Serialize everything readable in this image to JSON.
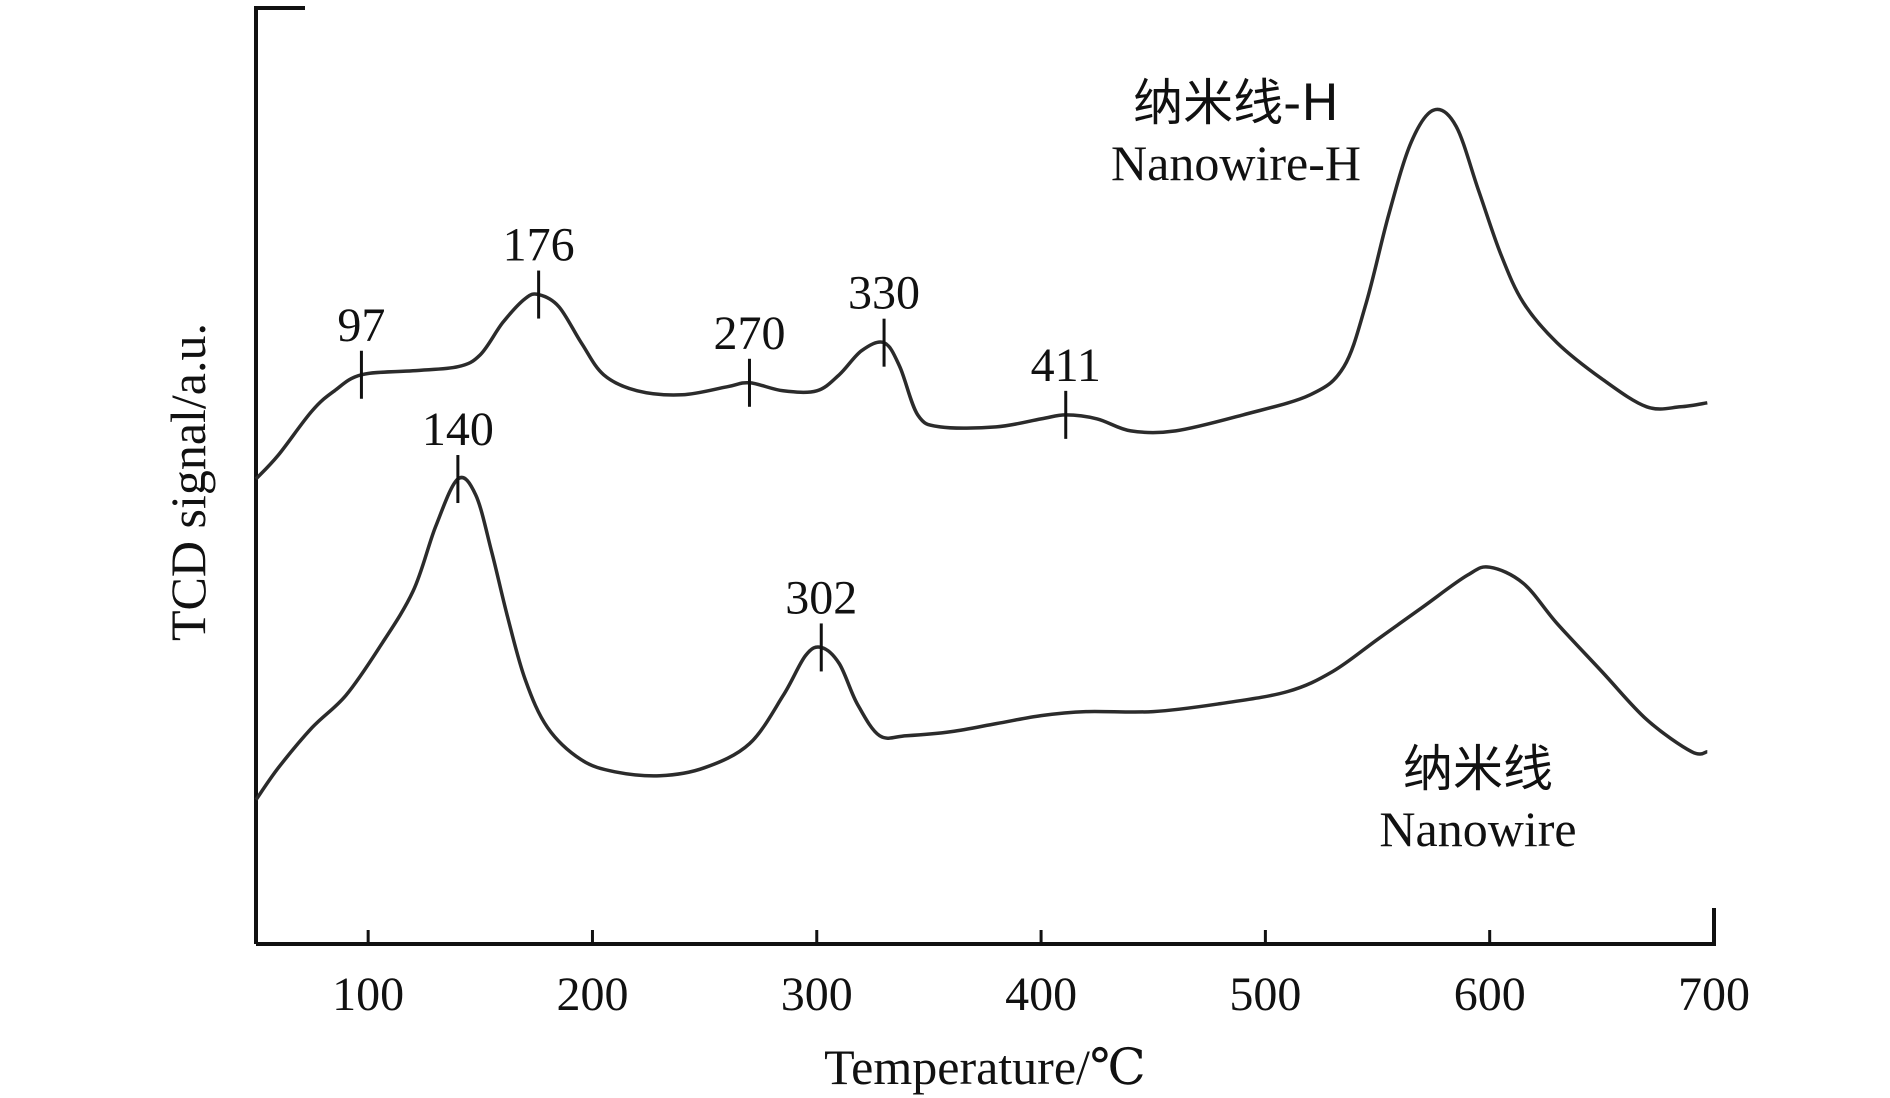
{
  "chart_data": {
    "type": "line",
    "xlabel": "Temperature/℃",
    "ylabel": "TCD signal/a.u.",
    "xlim": [
      50,
      700
    ],
    "x_ticks": [
      100,
      200,
      300,
      400,
      500,
      600,
      700
    ],
    "ylim": [
      0,
      100
    ],
    "y_tick_labels": false,
    "grid": false,
    "legend": "none (series labelled inline)",
    "series": [
      {
        "name": "Nanowire-H",
        "name_cn": "纳米线-H",
        "color": "#2b2b2b",
        "points": [
          [
            50,
            49
          ],
          [
            60,
            52
          ],
          [
            75,
            57.5
          ],
          [
            85,
            60
          ],
          [
            97,
            62
          ],
          [
            120,
            62.5
          ],
          [
            140,
            63
          ],
          [
            150,
            64.5
          ],
          [
            160,
            68.5
          ],
          [
            170,
            71.5
          ],
          [
            176,
            72
          ],
          [
            185,
            70.5
          ],
          [
            195,
            66
          ],
          [
            205,
            62
          ],
          [
            220,
            60
          ],
          [
            240,
            59.5
          ],
          [
            260,
            60.5
          ],
          [
            270,
            61
          ],
          [
            285,
            60
          ],
          [
            300,
            60
          ],
          [
            310,
            62
          ],
          [
            320,
            65
          ],
          [
            330,
            66
          ],
          [
            337,
            63
          ],
          [
            345,
            57
          ],
          [
            355,
            55.5
          ],
          [
            380,
            55.5
          ],
          [
            400,
            56.5
          ],
          [
            411,
            57
          ],
          [
            425,
            56.5
          ],
          [
            440,
            55
          ],
          [
            460,
            55
          ],
          [
            490,
            57
          ],
          [
            520,
            59.5
          ],
          [
            535,
            63
          ],
          [
            545,
            71
          ],
          [
            555,
            82
          ],
          [
            565,
            91
          ],
          [
            575,
            95
          ],
          [
            585,
            93
          ],
          [
            595,
            85
          ],
          [
            605,
            77
          ],
          [
            615,
            71
          ],
          [
            630,
            66
          ],
          [
            650,
            61.5
          ],
          [
            670,
            58
          ],
          [
            685,
            58
          ],
          [
            697,
            58.5
          ]
        ]
      },
      {
        "name": "Nanowire",
        "name_cn": "纳米线",
        "color": "#2b2b2b",
        "points": [
          [
            50,
            9
          ],
          [
            60,
            13
          ],
          [
            75,
            18
          ],
          [
            90,
            22
          ],
          [
            105,
            28
          ],
          [
            120,
            35
          ],
          [
            130,
            43
          ],
          [
            140,
            49
          ],
          [
            148,
            47
          ],
          [
            155,
            40
          ],
          [
            162,
            32
          ],
          [
            170,
            24
          ],
          [
            180,
            18
          ],
          [
            195,
            14
          ],
          [
            210,
            12.5
          ],
          [
            230,
            12
          ],
          [
            250,
            13
          ],
          [
            270,
            16
          ],
          [
            285,
            22
          ],
          [
            295,
            27
          ],
          [
            302,
            28
          ],
          [
            310,
            26
          ],
          [
            318,
            21
          ],
          [
            328,
            17
          ],
          [
            340,
            17
          ],
          [
            360,
            17.5
          ],
          [
            380,
            18.5
          ],
          [
            400,
            19.5
          ],
          [
            420,
            20
          ],
          [
            450,
            20
          ],
          [
            480,
            21
          ],
          [
            510,
            22.5
          ],
          [
            530,
            25
          ],
          [
            550,
            29
          ],
          [
            570,
            33
          ],
          [
            590,
            37
          ],
          [
            600,
            38
          ],
          [
            615,
            36
          ],
          [
            630,
            31
          ],
          [
            650,
            25
          ],
          [
            670,
            19
          ],
          [
            690,
            15
          ],
          [
            697,
            15
          ]
        ]
      }
    ],
    "peak_annotations": [
      {
        "series": "Nanowire-H",
        "x": 97,
        "y": 62,
        "label": "97"
      },
      {
        "series": "Nanowire-H",
        "x": 176,
        "y": 72,
        "label": "176"
      },
      {
        "series": "Nanowire-H",
        "x": 270,
        "y": 61,
        "label": "270"
      },
      {
        "series": "Nanowire-H",
        "x": 330,
        "y": 66,
        "label": "330"
      },
      {
        "series": "Nanowire-H",
        "x": 411,
        "y": 57,
        "label": "411"
      },
      {
        "series": "Nanowire",
        "x": 140,
        "y": 49,
        "label": "140"
      },
      {
        "series": "Nanowire",
        "x": 302,
        "y": 28,
        "label": "302"
      }
    ]
  }
}
